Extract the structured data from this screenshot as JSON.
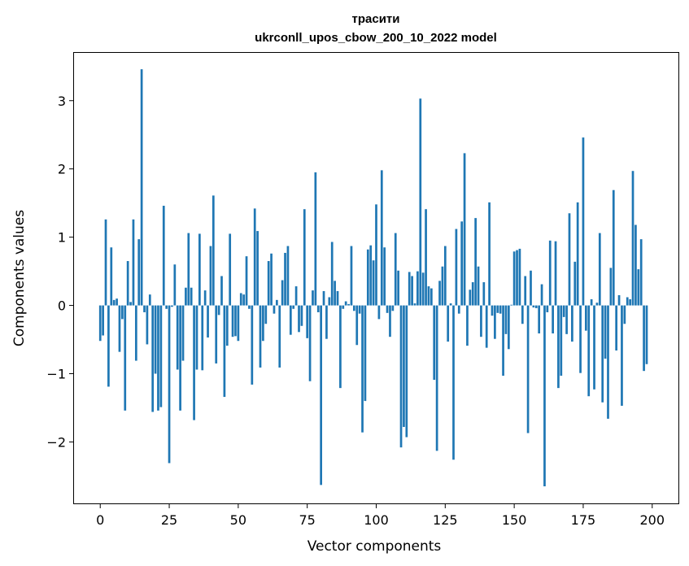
{
  "chart_data": {
    "type": "bar",
    "title": "трасити",
    "subtitle": "ukrconll_upos_cbow_200_10_2022 model",
    "xlabel": "Vector components",
    "ylabel": "Components values",
    "xlim": [
      -9.5,
      209.5
    ],
    "ylim": [
      -2.9,
      3.7
    ],
    "xticks": [
      0,
      25,
      50,
      75,
      100,
      125,
      150,
      175,
      200
    ],
    "yticks": [
      -2,
      -1,
      0,
      1,
      2,
      3
    ],
    "ytick_labels": [
      "−2",
      "−1",
      "0",
      "1",
      "2",
      "3"
    ],
    "grid": false,
    "bar_color": "#1f77b4",
    "values": [
      -0.52,
      -0.44,
      1.26,
      -1.19,
      0.85,
      0.08,
      0.1,
      -0.68,
      -0.2,
      -1.54,
      0.65,
      0.05,
      1.26,
      -0.81,
      0.97,
      3.46,
      -0.1,
      -0.57,
      0.16,
      -1.56,
      -1.0,
      -1.54,
      -1.49,
      1.46,
      -0.05,
      -2.31,
      -0.02,
      0.6,
      -0.94,
      -1.54,
      -0.81,
      0.26,
      1.06,
      0.26,
      -1.68,
      -0.94,
      1.05,
      -0.95,
      0.22,
      -0.47,
      0.87,
      1.61,
      -0.85,
      -0.14,
      0.43,
      -1.34,
      -0.59,
      1.05,
      -0.46,
      -0.45,
      -0.52,
      0.18,
      0.16,
      0.72,
      -0.05,
      -1.16,
      1.42,
      1.09,
      -0.91,
      -0.52,
      -0.27,
      0.65,
      0.76,
      -0.12,
      0.08,
      -0.91,
      0.37,
      0.77,
      0.87,
      -0.43,
      -0.05,
      0.28,
      -0.39,
      -0.3,
      1.41,
      -0.48,
      -1.11,
      0.22,
      1.95,
      -0.1,
      -2.63,
      0.21,
      -0.49,
      0.12,
      0.93,
      0.36,
      0.21,
      -1.21,
      -0.05,
      0.06,
      0.02,
      0.87,
      -0.08,
      -0.58,
      -0.12,
      -1.86,
      -1.4,
      0.82,
      0.88,
      0.66,
      1.48,
      -0.2,
      1.98,
      0.85,
      -0.11,
      -0.46,
      -0.08,
      1.06,
      0.51,
      -2.08,
      -1.78,
      -1.93,
      0.49,
      0.43,
      0.03,
      0.5,
      3.03,
      0.48,
      1.41,
      0.28,
      0.25,
      -1.09,
      -2.13,
      0.36,
      0.57,
      0.87,
      -0.53,
      0.03,
      -2.26,
      1.12,
      -0.12,
      1.23,
      2.23,
      -0.59,
      0.23,
      0.34,
      1.28,
      0.57,
      -0.46,
      0.34,
      -0.62,
      1.51,
      -0.15,
      -0.49,
      -0.11,
      -0.12,
      -1.03,
      -0.42,
      -0.64,
      0.01,
      0.79,
      0.81,
      0.83,
      -0.27,
      0.43,
      -1.87,
      0.51,
      -0.03,
      -0.04,
      -0.41,
      0.31,
      -2.65,
      -0.1,
      0.95,
      -0.41,
      0.94,
      -1.21,
      -1.03,
      -0.17,
      -0.42,
      1.35,
      -0.53,
      0.64,
      1.51,
      -0.99,
      2.46,
      -0.37,
      -1.33,
      0.09,
      -1.23,
      0.04,
      1.06,
      -1.42,
      -0.78,
      -1.66,
      0.55,
      1.69,
      -0.66,
      0.15,
      -1.47,
      -0.27,
      0.12,
      0.09,
      1.97,
      1.18,
      0.53,
      0.97,
      -0.96,
      -0.86
    ]
  }
}
